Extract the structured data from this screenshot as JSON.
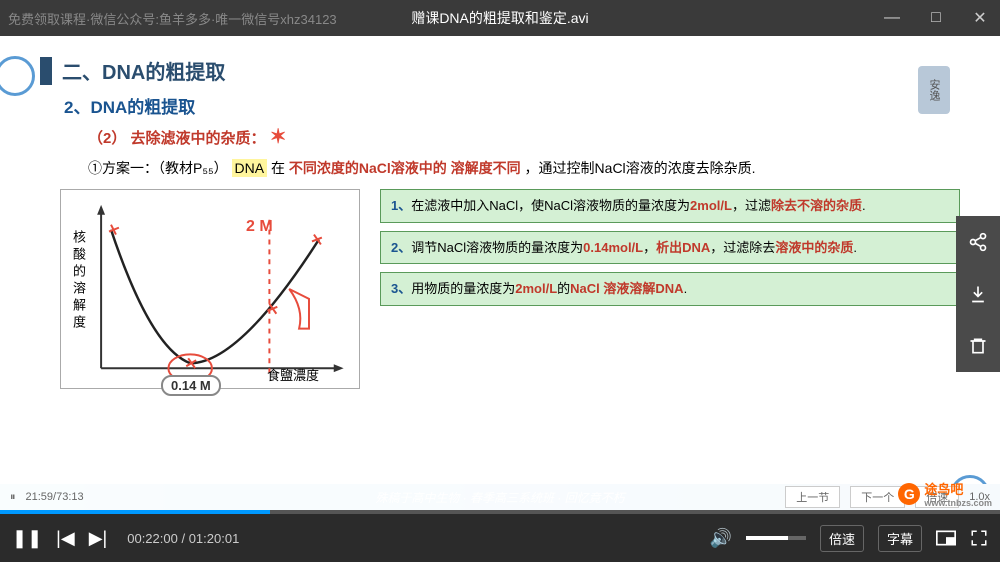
{
  "window": {
    "background_text": "免费领取课程·微信公众号:鱼羊多多·唯一微信号xhz34123",
    "title": "赠课DNA的粗提取和鉴定.avi",
    "buttons": {
      "min": "—",
      "max": "□",
      "close": "✕"
    }
  },
  "slide": {
    "header_bar_color": "#2a4d6e",
    "title": "二、DNA的粗提取",
    "side_label": "安逸",
    "subtitle": "2、DNA的粗提取",
    "subtitle2_num": "（2）",
    "subtitle2_text": "去除滤液中的杂质：",
    "star": "✶",
    "body": {
      "prefix": "①方案一：（教材P₅₅）",
      "dna": "DNA",
      "mid1": "在",
      "red1": "不同浓度的NaCl溶液中的",
      "red2": "溶解度不同",
      "mid2": "，通过控制NaCl溶液的浓度去除杂质.",
      "colors": {
        "red": "#c0392b",
        "blue": "#1a5490",
        "highlight": "#fff59d"
      }
    },
    "chart": {
      "type": "line",
      "y_label": "核酸的溶解度",
      "x_label": "食鹽濃度",
      "curve_points": [
        [
          30,
          40
        ],
        [
          70,
          155
        ],
        [
          130,
          175
        ],
        [
          200,
          150
        ],
        [
          260,
          60
        ]
      ],
      "curve_color": "#222",
      "curve_width": 2,
      "axis_color": "#333",
      "annotations": {
        "point_014": "0.14 M",
        "point_2m": "2 M",
        "anno_color": "#e74c3c"
      },
      "marks_color": "#e74c3c"
    },
    "info_boxes": {
      "bg": "#d4f0d4",
      "border": "#5a9a5a",
      "items": [
        {
          "num": "1、",
          "text_parts": [
            "在滤液中加入NaCl，使NaCl溶液物质的量浓度为",
            "2mol/L",
            "，过滤",
            "除去不溶的杂质",
            "."
          ],
          "red_idx": [
            1,
            3
          ]
        },
        {
          "num": "2、",
          "text_parts": [
            "调节NaCl溶液物质的量浓度为",
            "0.14mol/L",
            "，",
            "析出DNA",
            "，过滤除去",
            "溶液中的杂质",
            "."
          ],
          "red_idx": [
            1,
            3,
            5
          ]
        },
        {
          "num": "3、",
          "text_parts": [
            "用物质的量浓度为",
            "2mol/L",
            "的",
            "NaCl 溶液溶解DNA",
            "."
          ],
          "red_idx": [
            1,
            3
          ]
        }
      ]
    },
    "bottom_banner": "殊稿于高中生物 · 春季高三系统班 · 回忆竟不朽"
  },
  "toolbar": {
    "icons": [
      "share",
      "download",
      "trash"
    ]
  },
  "player": {
    "progress_pct": 27,
    "progress_color": "#0099ff",
    "time_current": "00:22:00",
    "time_total": "01:20:01",
    "speed_label": "倍速",
    "subtitle_label": "字幕"
  },
  "sub_bar": {
    "play_icon": "⏸",
    "time": "21:59/73:13",
    "prev": "上一节",
    "next": "下一个",
    "speed_btn": "倍速",
    "speed_val": "1.0x"
  },
  "logo": {
    "text": "途鸟吧",
    "url": "www.tnbzs.com",
    "color": "#ff6600"
  }
}
